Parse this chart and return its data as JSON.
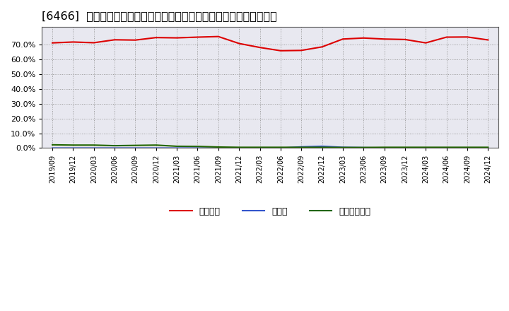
{
  "title": "[6466]  自己資本、のれん、繰延税金資産の総資産に対する比率の推移",
  "x_labels": [
    "2019/09",
    "2019/12",
    "2020/03",
    "2020/06",
    "2020/09",
    "2020/12",
    "2021/03",
    "2021/06",
    "2021/09",
    "2021/12",
    "2022/03",
    "2022/06",
    "2022/09",
    "2022/12",
    "2023/03",
    "2023/06",
    "2023/09",
    "2023/12",
    "2024/03",
    "2024/06",
    "2024/09",
    "2024/12"
  ],
  "jikoshihon": [
    71.2,
    71.8,
    71.3,
    73.3,
    73.1,
    74.8,
    74.6,
    75.1,
    75.5,
    70.8,
    68.1,
    65.9,
    66.1,
    68.5,
    73.8,
    74.5,
    73.8,
    73.5,
    71.2,
    75.1,
    75.2,
    73.2
  ],
  "noren": [
    0.0,
    0.0,
    0.0,
    0.0,
    0.0,
    0.0,
    0.0,
    0.0,
    0.0,
    0.0,
    0.0,
    0.0,
    0.8,
    1.2,
    0.5,
    0.3,
    0.1,
    0.1,
    0.1,
    0.1,
    0.1,
    0.1
  ],
  "kurinobe": [
    2.2,
    2.0,
    2.0,
    1.6,
    1.8,
    2.0,
    1.2,
    1.1,
    0.7,
    0.5,
    0.5,
    0.5,
    0.5,
    0.5,
    0.4,
    0.4,
    0.5,
    0.5,
    0.5,
    0.5,
    0.5,
    0.5
  ],
  "jikoshihon_color": "#dd0000",
  "noren_color": "#3355cc",
  "kurinobe_color": "#226600",
  "background_color": "#ffffff",
  "plot_bg_color": "#e8e8f0",
  "grid_color": "#999999",
  "legend_labels": [
    "自己資本",
    "のれん",
    "繰延税金資産"
  ],
  "ylim": [
    0,
    82
  ],
  "yticks": [
    0,
    10,
    20,
    30,
    40,
    50,
    60,
    70
  ],
  "title_fontsize": 11.5
}
